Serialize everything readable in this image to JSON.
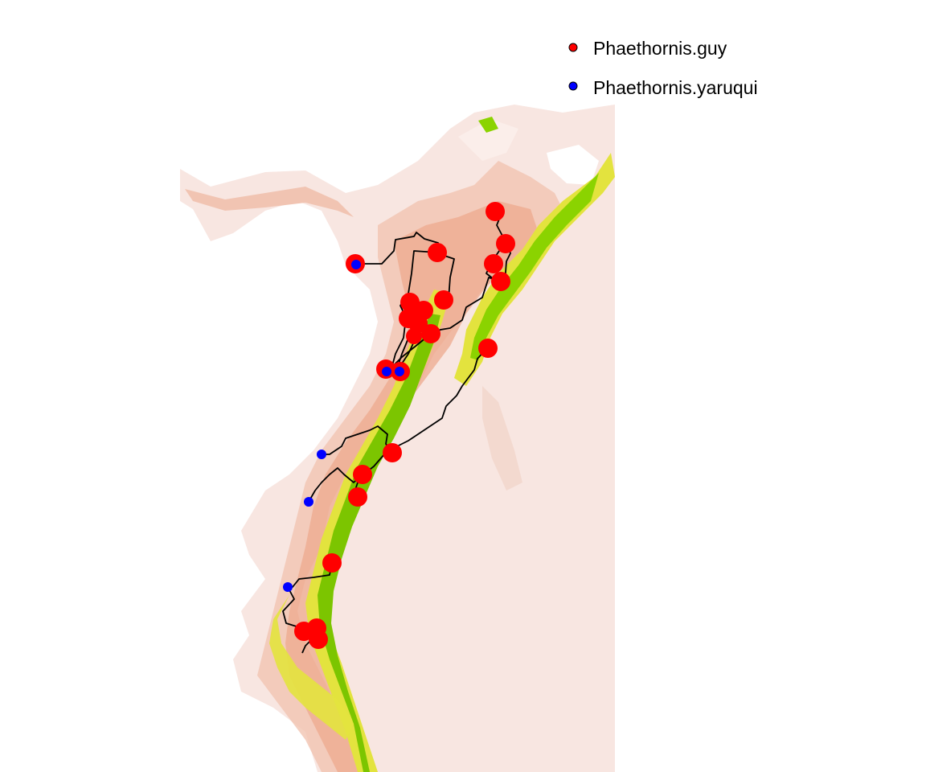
{
  "legend": {
    "items": [
      {
        "label": "Phaethornis.guy",
        "color": "#ff0000"
      },
      {
        "label": "Phaethornis.yaruqui",
        "color": "#0000ff"
      }
    ]
  },
  "colors": {
    "background": "#ffffff",
    "ocean": "#ffffff",
    "lowland": "#f7e2dc",
    "slope": "#f2c7b4",
    "foothill": "#efa98a",
    "montane": "#e8e84a",
    "highland": "#8ad400",
    "paramo": "#6ab000",
    "path": "#000000"
  },
  "icons": {
    "guy_point": "red-circle-marker",
    "yaruqui_point": "blue-circle-marker"
  }
}
